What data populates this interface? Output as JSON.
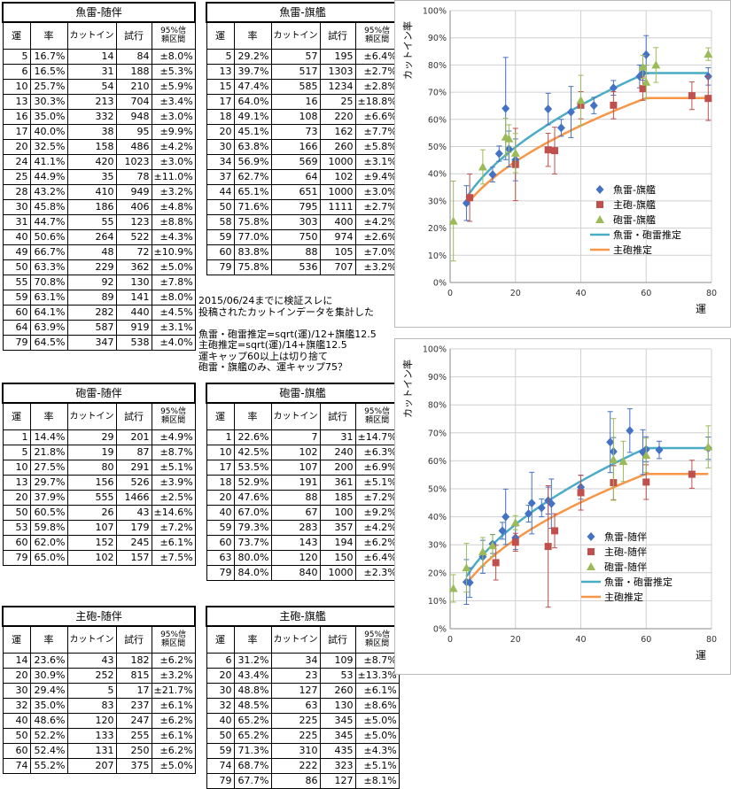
{
  "header": {
    "unit": "運",
    "rate": "率",
    "cutin": "カットイン",
    "trials": "試行",
    "ci1": "95%信",
    "ci2": "頼区間"
  },
  "tables": [
    {
      "id": "t1",
      "title": "魚雷-随伴",
      "rows": [
        [
          "5",
          "16.7%",
          "14",
          "84",
          "±8.0%"
        ],
        [
          "6",
          "16.5%",
          "31",
          "188",
          "±5.3%"
        ],
        [
          "10",
          "25.7%",
          "54",
          "210",
          "±5.9%"
        ],
        [
          "13",
          "30.3%",
          "213",
          "704",
          "±3.4%"
        ],
        [
          "16",
          "35.0%",
          "332",
          "948",
          "±3.0%"
        ],
        [
          "17",
          "40.0%",
          "38",
          "95",
          "±9.9%"
        ],
        [
          "20",
          "32.5%",
          "158",
          "486",
          "±4.2%"
        ],
        [
          "24",
          "41.1%",
          "420",
          "1023",
          "±3.0%"
        ],
        [
          "25",
          "44.9%",
          "35",
          "78",
          "±11.0%"
        ],
        [
          "28",
          "43.2%",
          "410",
          "949",
          "±3.2%"
        ],
        [
          "30",
          "45.8%",
          "186",
          "406",
          "±4.8%"
        ],
        [
          "31",
          "44.7%",
          "55",
          "123",
          "±8.8%"
        ],
        [
          "40",
          "50.6%",
          "264",
          "522",
          "±4.3%"
        ],
        [
          "49",
          "66.7%",
          "48",
          "72",
          "±10.9%"
        ],
        [
          "50",
          "63.3%",
          "229",
          "362",
          "±5.0%"
        ],
        [
          "55",
          "70.8%",
          "92",
          "130",
          "±7.8%"
        ],
        [
          "59",
          "63.1%",
          "89",
          "141",
          "±8.0%"
        ],
        [
          "60",
          "64.1%",
          "282",
          "440",
          "±4.5%"
        ],
        [
          "64",
          "63.9%",
          "587",
          "919",
          "±3.1%"
        ],
        [
          "79",
          "64.5%",
          "347",
          "538",
          "±4.0%"
        ]
      ]
    },
    {
      "id": "t2",
      "title": "魚雷-旗艦",
      "rows": [
        [
          "5",
          "29.2%",
          "57",
          "195",
          "±6.4%"
        ],
        [
          "13",
          "39.7%",
          "517",
          "1303",
          "±2.7%"
        ],
        [
          "15",
          "47.4%",
          "585",
          "1234",
          "±2.8%"
        ],
        [
          "17",
          "64.0%",
          "16",
          "25",
          "±18.8%"
        ],
        [
          "18",
          "49.1%",
          "108",
          "220",
          "±6.6%"
        ],
        [
          "20",
          "45.1%",
          "73",
          "162",
          "±7.7%"
        ],
        [
          "30",
          "63.8%",
          "166",
          "260",
          "±5.8%"
        ],
        [
          "34",
          "56.9%",
          "569",
          "1000",
          "±3.1%"
        ],
        [
          "37",
          "62.7%",
          "64",
          "102",
          "±9.4%"
        ],
        [
          "44",
          "65.1%",
          "651",
          "1000",
          "±3.0%"
        ],
        [
          "50",
          "71.6%",
          "795",
          "1111",
          "±2.7%"
        ],
        [
          "58",
          "75.8%",
          "303",
          "400",
          "±4.2%"
        ],
        [
          "59",
          "77.0%",
          "750",
          "974",
          "±2.6%"
        ],
        [
          "60",
          "83.8%",
          "88",
          "105",
          "±7.0%"
        ],
        [
          "79",
          "75.8%",
          "536",
          "707",
          "±3.2%"
        ]
      ]
    },
    {
      "id": "t3",
      "title": "砲雷-随伴",
      "rows": [
        [
          "1",
          "14.4%",
          "29",
          "201",
          "±4.9%"
        ],
        [
          "5",
          "21.8%",
          "19",
          "87",
          "±8.7%"
        ],
        [
          "10",
          "27.5%",
          "80",
          "291",
          "±5.1%"
        ],
        [
          "13",
          "29.7%",
          "156",
          "526",
          "±3.9%"
        ],
        [
          "20",
          "37.9%",
          "555",
          "1466",
          "±2.5%"
        ],
        [
          "50",
          "60.5%",
          "26",
          "43",
          "±14.6%"
        ],
        [
          "53",
          "59.8%",
          "107",
          "179",
          "±7.2%"
        ],
        [
          "60",
          "62.0%",
          "152",
          "245",
          "±6.1%"
        ],
        [
          "79",
          "65.0%",
          "102",
          "157",
          "±7.5%"
        ]
      ]
    },
    {
      "id": "t4",
      "title": "砲雷-旗艦",
      "rows": [
        [
          "1",
          "22.6%",
          "7",
          "31",
          "±14.7%"
        ],
        [
          "10",
          "42.5%",
          "102",
          "240",
          "±6.3%"
        ],
        [
          "17",
          "53.5%",
          "107",
          "200",
          "±6.9%"
        ],
        [
          "18",
          "52.9%",
          "191",
          "361",
          "±5.1%"
        ],
        [
          "20",
          "47.6%",
          "88",
          "185",
          "±7.2%"
        ],
        [
          "40",
          "67.0%",
          "67",
          "100",
          "±9.2%"
        ],
        [
          "59",
          "79.3%",
          "283",
          "357",
          "±4.2%"
        ],
        [
          "60",
          "73.7%",
          "143",
          "194",
          "±6.2%"
        ],
        [
          "63",
          "80.0%",
          "120",
          "150",
          "±6.4%"
        ],
        [
          "79",
          "84.0%",
          "840",
          "1000",
          "±2.3%"
        ]
      ]
    },
    {
      "id": "t5",
      "title": "主砲-随伴",
      "rows": [
        [
          "14",
          "23.6%",
          "43",
          "182",
          "±6.2%"
        ],
        [
          "20",
          "30.9%",
          "252",
          "815",
          "±3.2%"
        ],
        [
          "30",
          "29.4%",
          "5",
          "17",
          "±21.7%"
        ],
        [
          "32",
          "35.0%",
          "83",
          "237",
          "±6.1%"
        ],
        [
          "40",
          "48.6%",
          "120",
          "247",
          "±6.2%"
        ],
        [
          "50",
          "52.2%",
          "133",
          "255",
          "±6.1%"
        ],
        [
          "60",
          "52.4%",
          "131",
          "250",
          "±6.2%"
        ],
        [
          "74",
          "55.2%",
          "207",
          "375",
          "±5.0%"
        ]
      ]
    },
    {
      "id": "t6",
      "title": "主砲-旗艦",
      "rows": [
        [
          "6",
          "31.2%",
          "34",
          "109",
          "±8.7%"
        ],
        [
          "20",
          "43.4%",
          "23",
          "53",
          "±13.3%"
        ],
        [
          "30",
          "48.8%",
          "127",
          "260",
          "±6.1%"
        ],
        [
          "32",
          "48.5%",
          "63",
          "130",
          "±8.6%"
        ],
        [
          "40",
          "65.2%",
          "225",
          "345",
          "±5.0%"
        ],
        [
          "50",
          "65.2%",
          "225",
          "345",
          "±5.0%"
        ],
        [
          "59",
          "71.3%",
          "310",
          "435",
          "±4.3%"
        ],
        [
          "74",
          "68.7%",
          "222",
          "323",
          "±5.1%"
        ],
        [
          "79",
          "67.7%",
          "86",
          "127",
          "±8.1%"
        ]
      ]
    }
  ],
  "notes": [
    "2015/06/24までに検証スレに",
    "投稿されたカットインデータを集計した",
    "",
    "魚雷・砲雷推定=sqrt(運)/12+旗艦12.5",
    "主砲推定=sqrt(運)/14+旗艦12.5",
    "運キャップ60以上は切り捨て",
    "砲雷・旗艦のみ、運キャップ75？"
  ],
  "chart_data": [
    {
      "type": "scatter",
      "xlabel": "運",
      "ylabel": "カットイン率",
      "xlim": [
        0,
        80
      ],
      "ylim": [
        0,
        100
      ],
      "xticks": [
        "0",
        "20",
        "40",
        "60",
        "80"
      ],
      "yticks": [
        "0%",
        "10%",
        "20%",
        "30%",
        "40%",
        "50%",
        "60%",
        "70%",
        "80%",
        "90%",
        "100%"
      ],
      "legend_position": "bottom-right",
      "series": [
        {
          "name": "魚雷-旗艦",
          "marker": "diamond",
          "color": "#4472C4",
          "x": [
            5,
            13,
            15,
            17,
            18,
            20,
            30,
            34,
            37,
            44,
            50,
            58,
            59,
            60,
            79
          ],
          "y": [
            29.2,
            39.7,
            47.4,
            64.0,
            49.1,
            45.1,
            63.8,
            56.9,
            62.7,
            65.1,
            71.6,
            75.8,
            77.0,
            83.8,
            75.8
          ],
          "err": [
            6.4,
            2.7,
            2.8,
            18.8,
            6.6,
            7.7,
            5.8,
            3.1,
            9.4,
            3.0,
            2.7,
            4.2,
            2.6,
            7.0,
            3.2
          ]
        },
        {
          "name": "主砲-旗艦",
          "marker": "square",
          "color": "#C0504D",
          "x": [
            6,
            20,
            30,
            32,
            40,
            50,
            59,
            74,
            79
          ],
          "y": [
            31.2,
            43.4,
            48.8,
            48.5,
            65.2,
            65.2,
            71.3,
            68.7,
            67.7
          ],
          "err": [
            8.7,
            13.3,
            6.1,
            8.6,
            5.0,
            5.0,
            4.3,
            5.1,
            8.1
          ]
        },
        {
          "name": "砲雷-旗艦",
          "marker": "triangle",
          "color": "#9BBB59",
          "x": [
            1,
            10,
            17,
            18,
            20,
            40,
            59,
            60,
            63,
            79
          ],
          "y": [
            22.6,
            42.5,
            53.5,
            52.9,
            47.6,
            67.0,
            79.3,
            73.7,
            80.0,
            84.0
          ],
          "err": [
            14.7,
            6.3,
            6.9,
            5.1,
            7.2,
            9.2,
            4.2,
            6.2,
            6.4,
            2.3
          ]
        },
        {
          "name": "魚雷・砲雷推定",
          "line": true,
          "color": "#4BACC6",
          "formula": "sqrt(運)/12+0.125",
          "cap": 60
        },
        {
          "name": "主砲推定",
          "line": true,
          "color": "#F79646",
          "formula": "sqrt(運)/14+0.125",
          "cap": 60
        }
      ]
    },
    {
      "type": "scatter",
      "xlabel": "運",
      "ylabel": "カットイン率",
      "xlim": [
        0,
        80
      ],
      "ylim": [
        0,
        100
      ],
      "xticks": [
        "0",
        "20",
        "40",
        "60",
        "80"
      ],
      "yticks": [
        "0%",
        "10%",
        "20%",
        "30%",
        "40%",
        "50%",
        "60%",
        "70%",
        "80%",
        "90%",
        "100%"
      ],
      "legend_position": "bottom-right",
      "series": [
        {
          "name": "魚雷-随伴",
          "marker": "diamond",
          "color": "#4472C4",
          "x": [
            5,
            6,
            10,
            13,
            16,
            17,
            20,
            24,
            25,
            28,
            30,
            31,
            40,
            49,
            50,
            55,
            59,
            60,
            64,
            79
          ],
          "y": [
            16.7,
            16.5,
            25.7,
            30.3,
            35.0,
            40.0,
            32.5,
            41.1,
            44.9,
            43.2,
            45.8,
            44.7,
            50.6,
            66.7,
            63.3,
            70.8,
            63.1,
            64.1,
            63.9,
            64.5
          ],
          "err": [
            8.0,
            5.3,
            5.9,
            3.4,
            3.0,
            9.9,
            4.2,
            3.0,
            11.0,
            3.2,
            4.8,
            8.8,
            4.3,
            10.9,
            5.0,
            7.8,
            8.0,
            4.5,
            3.1,
            4.0
          ]
        },
        {
          "name": "主砲-随伴",
          "marker": "square",
          "color": "#C0504D",
          "x": [
            14,
            20,
            30,
            32,
            40,
            50,
            60,
            74
          ],
          "y": [
            23.6,
            30.9,
            29.4,
            35.0,
            48.6,
            52.2,
            52.4,
            55.2
          ],
          "err": [
            6.2,
            3.2,
            21.7,
            6.1,
            6.2,
            6.1,
            6.2,
            5.0
          ]
        },
        {
          "name": "砲雷-随伴",
          "marker": "triangle",
          "color": "#9BBB59",
          "x": [
            1,
            5,
            10,
            13,
            20,
            50,
            53,
            60,
            79
          ],
          "y": [
            14.4,
            21.8,
            27.5,
            29.7,
            37.9,
            60.5,
            59.8,
            62.0,
            65.0
          ],
          "err": [
            4.9,
            8.7,
            5.1,
            3.9,
            2.5,
            14.6,
            7.2,
            6.1,
            7.5
          ]
        },
        {
          "name": "魚雷・砲雷推定",
          "line": true,
          "color": "#4BACC6",
          "formula": "sqrt(運)/12",
          "cap": 60
        },
        {
          "name": "主砲推定",
          "line": true,
          "color": "#F79646",
          "formula": "sqrt(運)/14",
          "cap": 60
        }
      ]
    }
  ]
}
